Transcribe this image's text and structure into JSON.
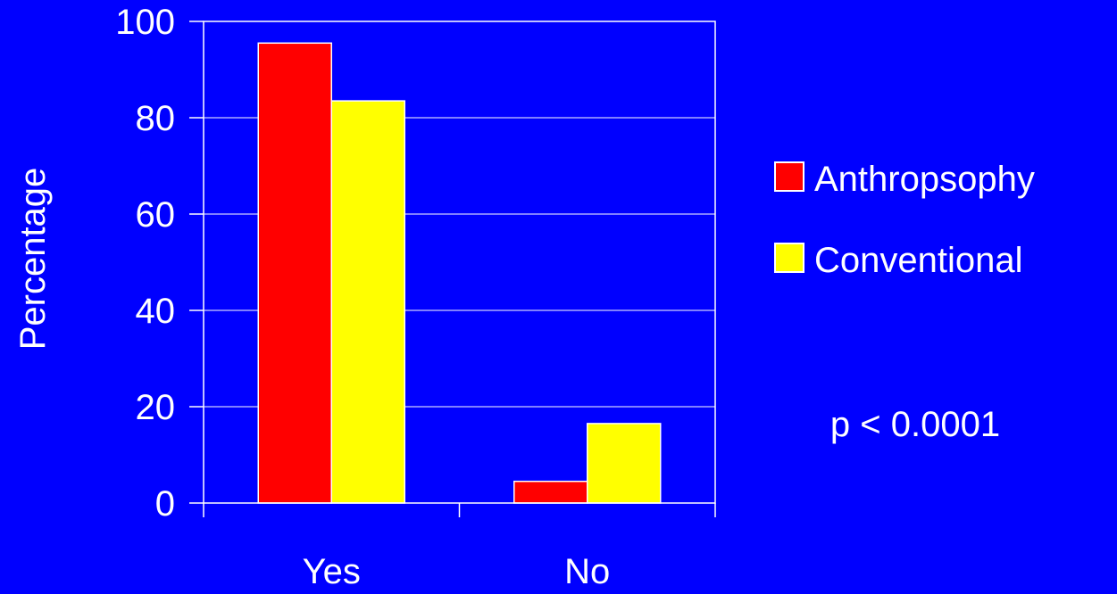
{
  "chart_data": {
    "type": "bar",
    "categories": [
      "Yes",
      "No"
    ],
    "series": [
      {
        "name": "Anthropsophy",
        "color": "#FF0000",
        "values": [
          95.5,
          4.5
        ]
      },
      {
        "name": "Conventional",
        "color": "#FFFF00",
        "values": [
          83.5,
          16.5
        ]
      }
    ],
    "ylabel": "Percentage",
    "xlabel": "",
    "ylim": [
      0,
      100
    ],
    "yticks": [
      "0",
      "20",
      "40",
      "60",
      "80",
      "100"
    ],
    "grid": true,
    "legend": "right",
    "annotation": "p < 0.0001"
  },
  "colors": {
    "background": "#0000FF",
    "axis": "#FFFFFF",
    "text": "#FFFFFF"
  }
}
